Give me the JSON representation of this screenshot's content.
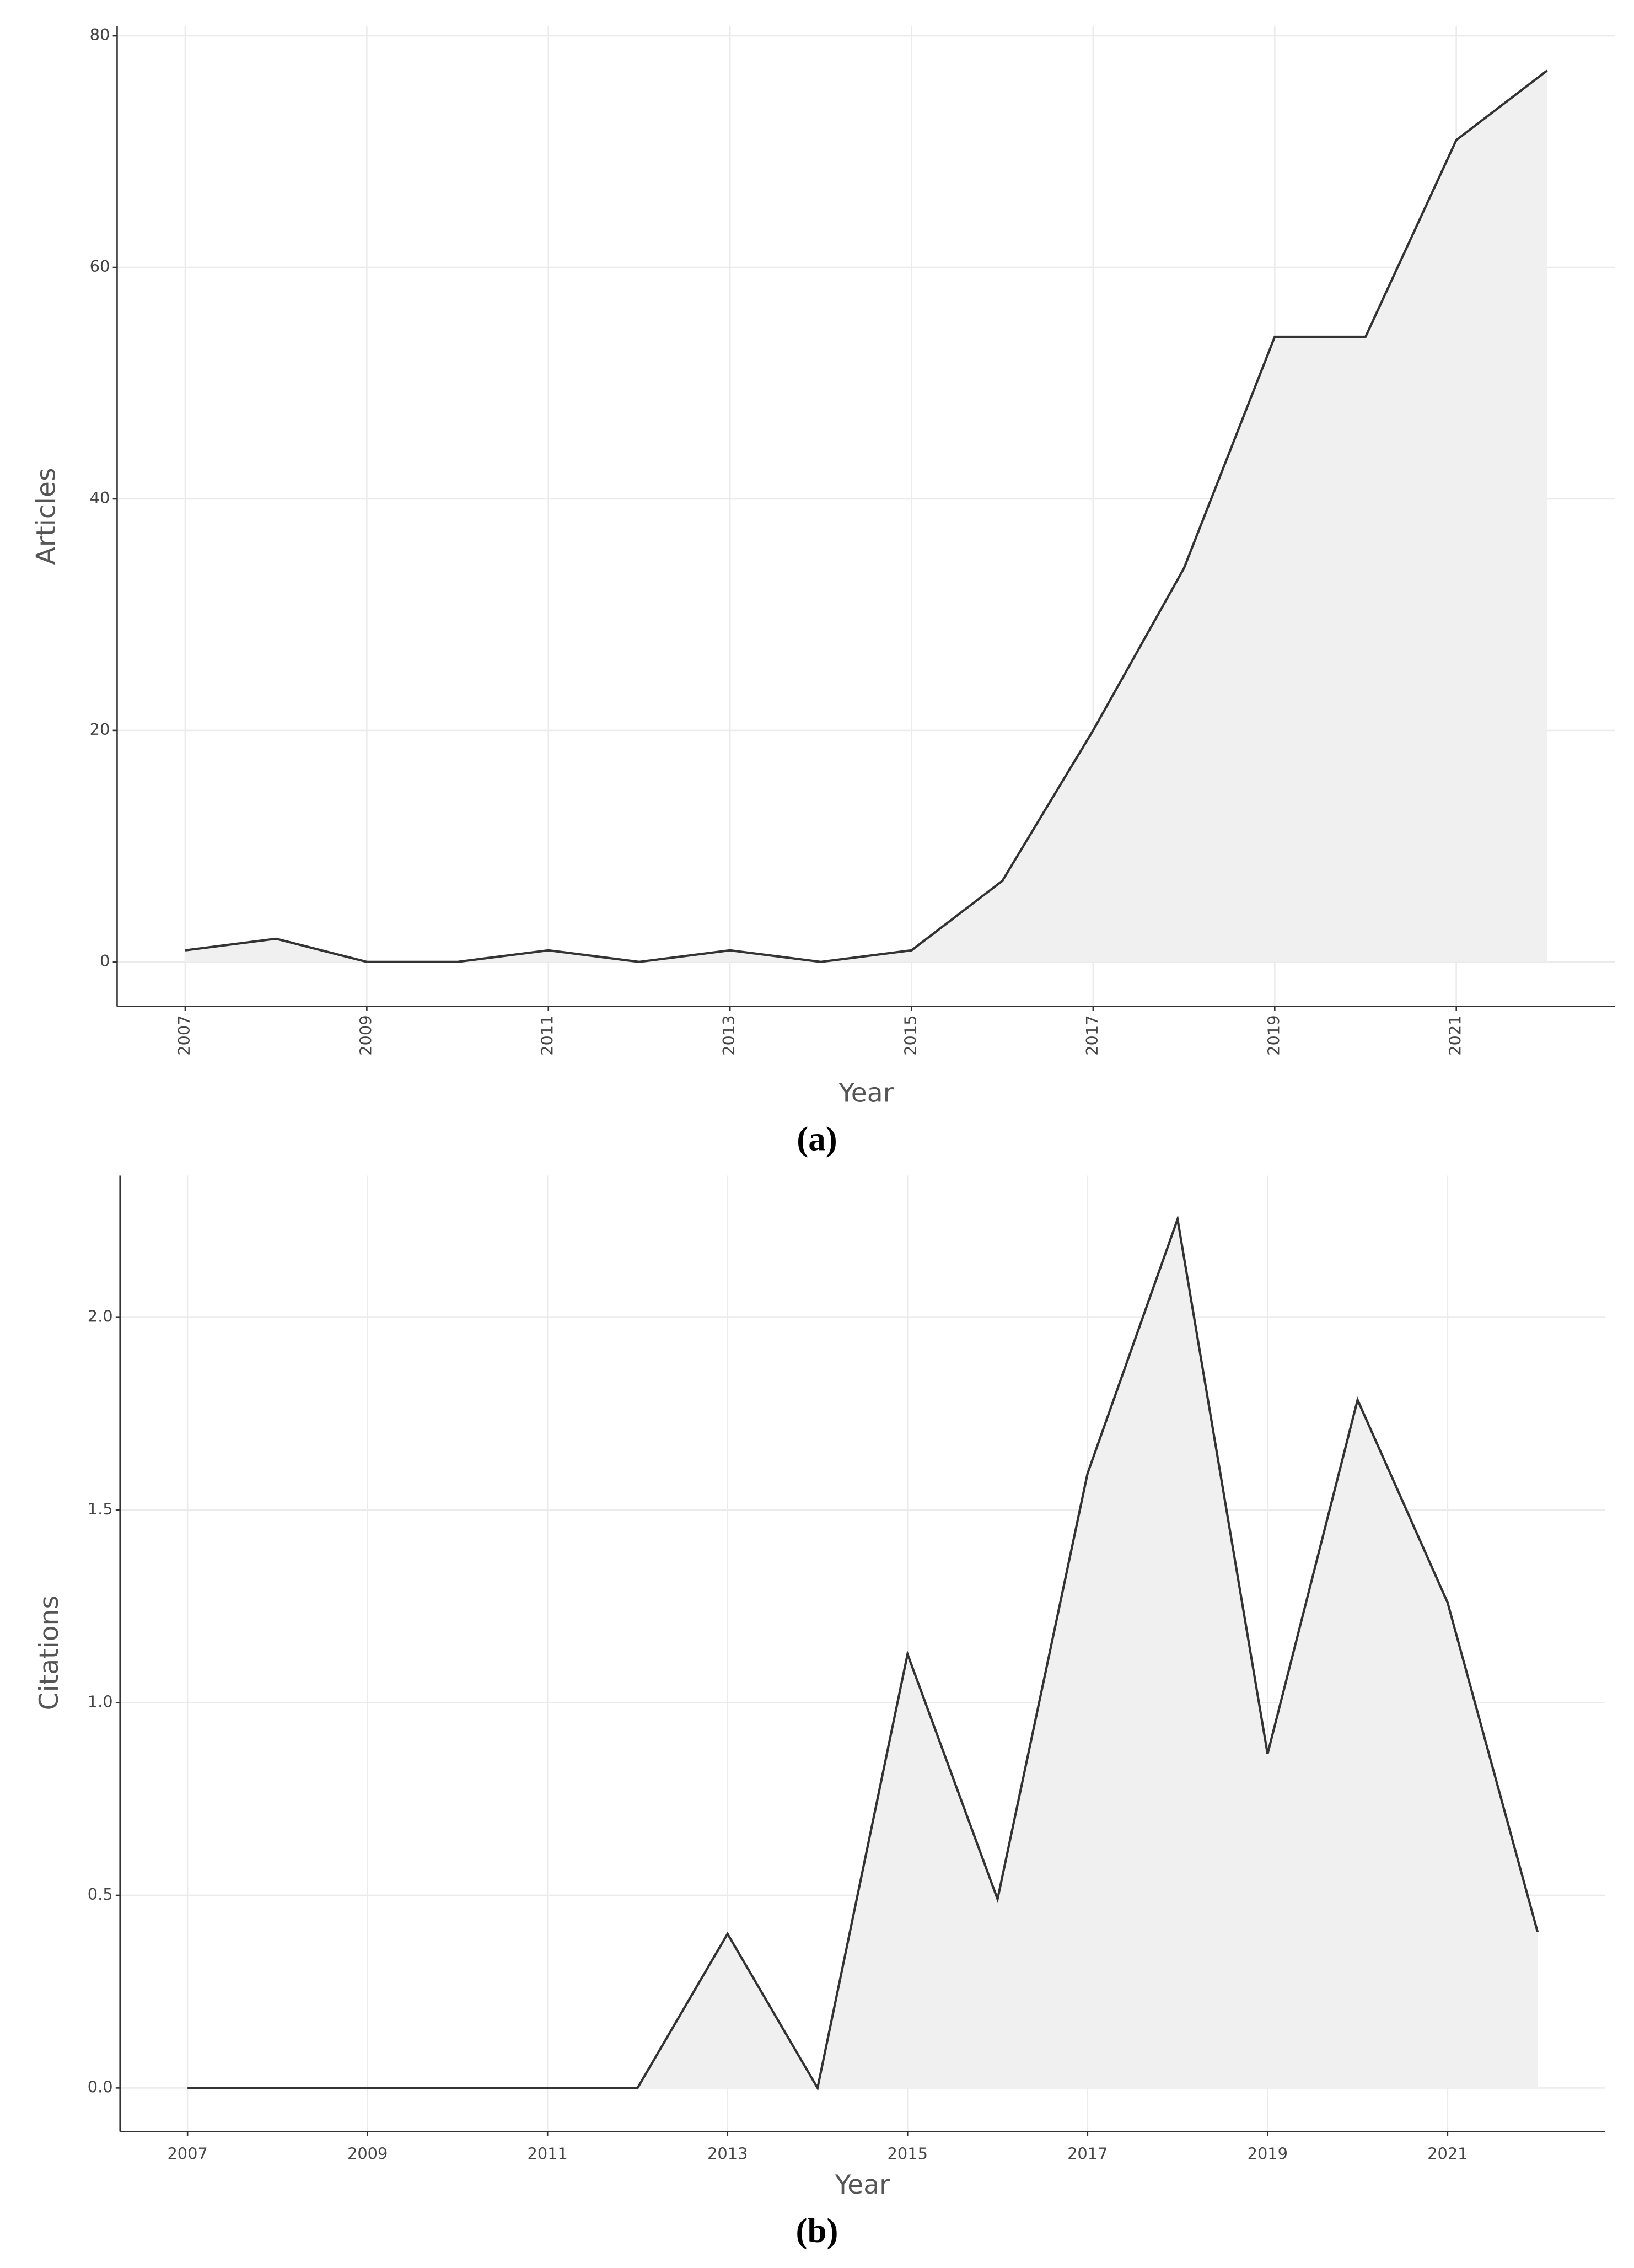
{
  "chart_data": [
    {
      "type": "area",
      "caption": "(a)",
      "x_label": "Year",
      "y_label": "Articles",
      "x": [
        2007,
        2008,
        2009,
        2010,
        2011,
        2012,
        2013,
        2014,
        2015,
        2016,
        2017,
        2018,
        2019,
        2020,
        2021,
        2022
      ],
      "values": [
        1,
        2,
        0,
        0,
        1,
        0,
        1,
        0,
        1,
        7,
        20,
        34,
        54,
        54,
        71,
        77
      ],
      "color": "#333333",
      "fill": "#f0f0f0",
      "xlim": [
        2006.25,
        2022.75
      ],
      "xticks": [
        2007,
        2009,
        2011,
        2013,
        2015,
        2017,
        2019,
        2021
      ],
      "xtick_rotation": -90,
      "ylim": [
        -3.85,
        80.85
      ],
      "yticks": [
        0,
        20,
        40,
        60,
        80
      ],
      "grid": true
    },
    {
      "type": "area",
      "caption": "(b)",
      "x_label": "Year",
      "y_label": "Citations",
      "x": [
        2007,
        2008,
        2009,
        2010,
        2011,
        2012,
        2013,
        2014,
        2015,
        2016,
        2017,
        2018,
        2019,
        2020,
        2021,
        2022
      ],
      "values": [
        0,
        0,
        0,
        0,
        0,
        0,
        0.4,
        0,
        1.126,
        0.49,
        1.595,
        2.255,
        0.867,
        1.786,
        1.26,
        0.405
      ],
      "color": "#333333",
      "fill": "#f0f0f0",
      "xlim": [
        2006.25,
        2022.75
      ],
      "xticks": [
        2007,
        2009,
        2011,
        2013,
        2015,
        2017,
        2019,
        2021
      ],
      "xtick_rotation": 0,
      "ylim": [
        -0.113,
        2.368
      ],
      "yticks": [
        {
          "value": 0,
          "label": "0.0"
        },
        0.5,
        {
          "value": 1,
          "label": "1.0"
        },
        1.5,
        {
          "value": 2,
          "label": "2.0"
        }
      ],
      "grid": true
    }
  ]
}
